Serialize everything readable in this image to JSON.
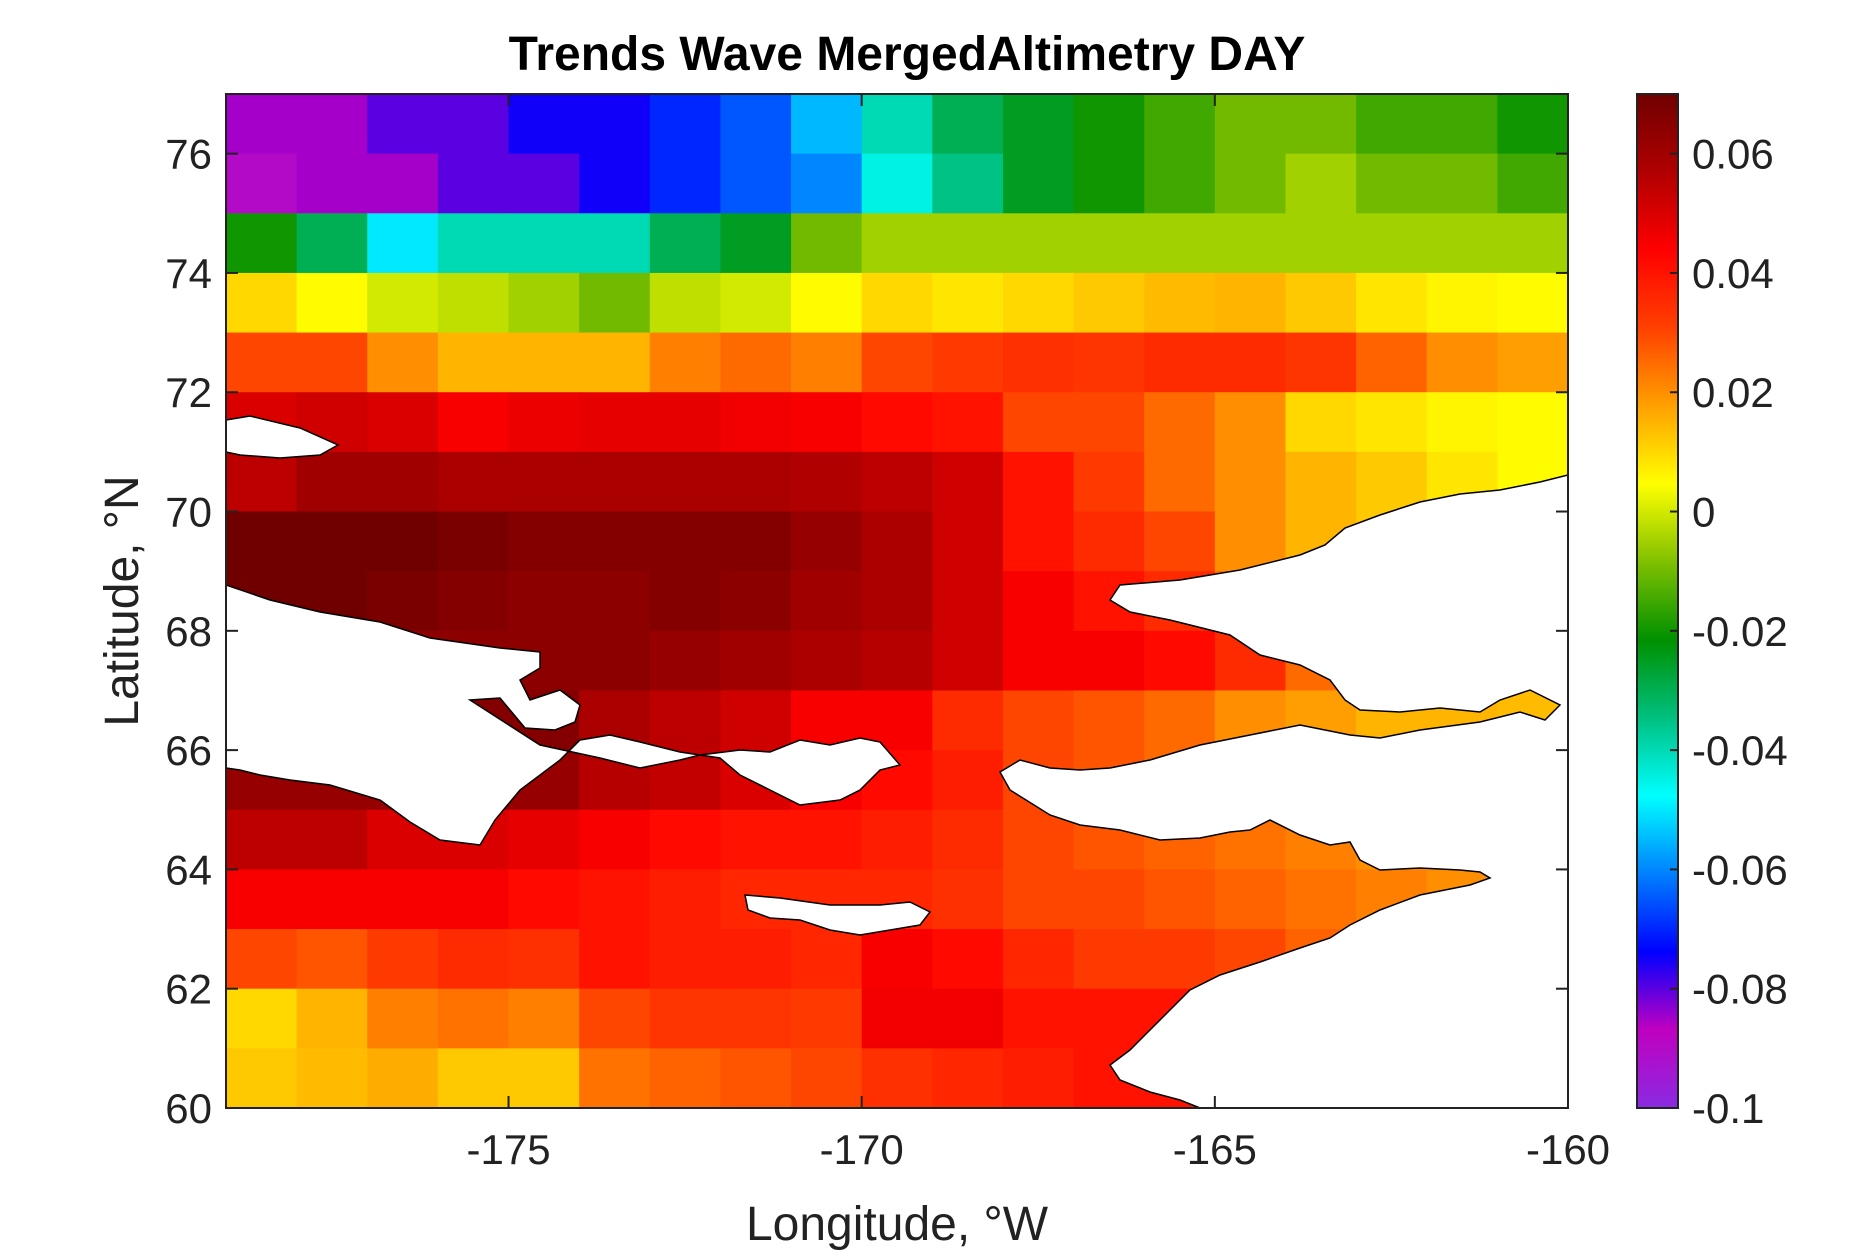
{
  "title": "Trends Wave MergedAltimetry DAY",
  "chart_data": {
    "type": "heatmap",
    "title": "Trends Wave MergedAltimetry DAY",
    "xlabel": "Longitude, °W",
    "ylabel": "Latitude, °N",
    "xlim": [
      -179,
      -160
    ],
    "ylim": [
      60,
      77
    ],
    "x_ticks": [
      "-175",
      "-170",
      "-165",
      "-160"
    ],
    "y_ticks": [
      "60",
      "62",
      "64",
      "66",
      "68",
      "70",
      "72",
      "74",
      "76"
    ],
    "colorbar": {
      "range": [
        -0.1,
        0.07
      ],
      "ticks": [
        "-0.1",
        "-0.08",
        "-0.06",
        "-0.04",
        "-0.02",
        "0",
        "0.02",
        "0.04",
        "0.06"
      ],
      "colormap": [
        "#8a2be2",
        "#c000c0",
        "#0000ff",
        "#0080ff",
        "#00ffff",
        "#00c080",
        "#009000",
        "#80c000",
        "#ffff00",
        "#ffa000",
        "#ff4000",
        "#ff0000",
        "#b00000",
        "#700000"
      ]
    },
    "grid": {
      "lon_start": -179,
      "lon_step": 1,
      "lat_start": 77,
      "lat_step": -1,
      "rows": [
        [
          -0.085,
          -0.085,
          -0.08,
          -0.08,
          -0.075,
          -0.075,
          -0.07,
          -0.065,
          -0.055,
          -0.04,
          -0.03,
          -0.025,
          -0.02,
          -0.015,
          -0.01,
          -0.01,
          -0.015,
          -0.015,
          -0.02,
          -0.025,
          -0.035
        ],
        [
          -0.09,
          -0.085,
          -0.085,
          -0.08,
          -0.08,
          -0.075,
          -0.07,
          -0.065,
          -0.06,
          -0.045,
          -0.035,
          -0.025,
          -0.02,
          -0.015,
          -0.01,
          -0.005,
          -0.01,
          -0.01,
          -0.015,
          -0.015,
          -0.02
        ],
        [
          -0.02,
          -0.03,
          -0.05,
          -0.04,
          -0.04,
          -0.04,
          -0.03,
          -0.025,
          -0.01,
          -0.005,
          -0.005,
          -0.005,
          -0.005,
          -0.005,
          -0.005,
          -0.005,
          -0.005,
          -0.005,
          -0.005,
          -0.01,
          -0.01
        ],
        [
          0.01,
          0.005,
          0.0,
          -0.002,
          -0.005,
          -0.01,
          -0.002,
          0.0,
          0.005,
          0.01,
          0.008,
          0.01,
          0.012,
          0.014,
          0.015,
          0.012,
          0.008,
          0.006,
          0.005,
          0.005,
          0.006
        ],
        [
          0.03,
          0.03,
          0.02,
          0.015,
          0.015,
          0.015,
          0.022,
          0.025,
          0.022,
          0.03,
          0.032,
          0.034,
          0.033,
          0.035,
          0.035,
          0.033,
          0.026,
          0.02,
          0.018,
          0.014,
          0.012
        ],
        [
          0.05,
          0.052,
          0.05,
          0.045,
          0.047,
          0.048,
          0.048,
          0.046,
          0.045,
          0.042,
          0.04,
          0.03,
          0.03,
          0.025,
          0.02,
          0.01,
          0.008,
          0.006,
          0.005,
          0.004,
          0.004
        ],
        [
          0.055,
          0.06,
          0.06,
          0.058,
          0.058,
          0.058,
          0.058,
          0.058,
          0.057,
          0.055,
          0.052,
          0.04,
          0.032,
          0.025,
          0.02,
          0.015,
          0.012,
          0.008,
          0.005,
          0.005,
          0.006
        ],
        [
          0.07,
          0.07,
          0.07,
          0.068,
          0.066,
          0.066,
          0.066,
          0.066,
          0.062,
          0.058,
          0.052,
          0.04,
          0.035,
          0.03,
          0.02,
          0.015,
          0.012,
          0.01,
          0.008,
          0.006,
          0.006
        ],
        [
          0.07,
          0.07,
          0.068,
          0.066,
          0.064,
          0.064,
          0.066,
          0.064,
          0.06,
          0.058,
          0.052,
          0.045,
          0.04,
          0.035,
          0.025,
          0.02,
          0.018,
          0.014,
          0.012,
          0.01,
          0.01
        ],
        [
          0.065,
          0.065,
          0.064,
          0.064,
          0.064,
          0.064,
          0.062,
          0.06,
          0.058,
          0.056,
          0.052,
          0.045,
          0.045,
          0.042,
          0.035,
          0.025,
          0.02,
          0.018,
          0.016,
          0.014,
          0.012
        ],
        [
          0.064,
          0.064,
          0.064,
          0.066,
          0.066,
          0.058,
          0.055,
          0.052,
          0.045,
          0.045,
          0.035,
          0.03,
          0.028,
          0.025,
          0.02,
          0.018,
          0.015,
          0.015,
          0.014,
          0.012,
          0.012
        ],
        [
          0.062,
          0.062,
          0.062,
          0.062,
          0.062,
          0.056,
          0.054,
          0.05,
          0.045,
          0.042,
          0.038,
          0.03,
          0.028,
          0.025,
          0.022,
          0.02,
          0.016,
          0.016,
          0.015,
          0.014,
          0.012
        ],
        [
          0.055,
          0.055,
          0.05,
          0.05,
          0.048,
          0.045,
          0.042,
          0.04,
          0.04,
          0.038,
          0.035,
          0.03,
          0.028,
          0.026,
          0.024,
          0.022,
          0.02,
          0.018,
          0.016,
          0.014,
          0.012
        ],
        [
          0.045,
          0.045,
          0.045,
          0.045,
          0.042,
          0.04,
          0.038,
          0.036,
          0.036,
          0.036,
          0.034,
          0.03,
          0.03,
          0.028,
          0.026,
          0.024,
          0.022,
          0.02,
          0.018,
          0.016,
          0.014
        ],
        [
          0.03,
          0.028,
          0.032,
          0.035,
          0.034,
          0.04,
          0.038,
          0.038,
          0.036,
          0.045,
          0.042,
          0.036,
          0.032,
          0.032,
          0.03,
          0.026,
          0.024,
          0.022,
          0.02,
          0.018,
          0.014
        ],
        [
          0.01,
          0.015,
          0.022,
          0.024,
          0.022,
          0.03,
          0.033,
          0.033,
          0.032,
          0.046,
          0.046,
          0.04,
          0.04,
          0.04,
          0.035,
          0.028,
          0.025,
          0.022,
          0.02,
          0.018,
          0.014
        ],
        [
          0.012,
          0.014,
          0.016,
          0.012,
          0.012,
          0.024,
          0.026,
          0.028,
          0.03,
          0.034,
          0.036,
          0.038,
          0.04,
          0.04,
          0.036,
          0.028,
          0.024,
          0.022,
          0.02,
          0.018,
          0.015
        ],
        [
          0.022,
          0.022,
          0.022,
          0.018,
          0.016,
          0.015,
          0.02,
          0.018,
          0.016,
          0.02,
          0.018,
          0.022,
          0.02,
          0.03,
          0.04,
          0.035,
          0.03,
          0.025,
          0.022,
          0.02,
          0.018
        ],
        [
          0.025,
          0.03,
          0.028,
          0.028,
          0.03,
          0.028,
          0.024,
          0.02,
          0.018,
          0.016,
          0.016,
          0.016,
          0.018,
          0.022,
          0.028,
          0.022,
          0.02,
          0.018,
          0.016,
          0.016,
          0.016
        ]
      ]
    },
    "land_mask": "white land polygons: Chukotka peninsula (left), Alaska/Seward peninsula (right), St. Lawrence Island (center)"
  }
}
